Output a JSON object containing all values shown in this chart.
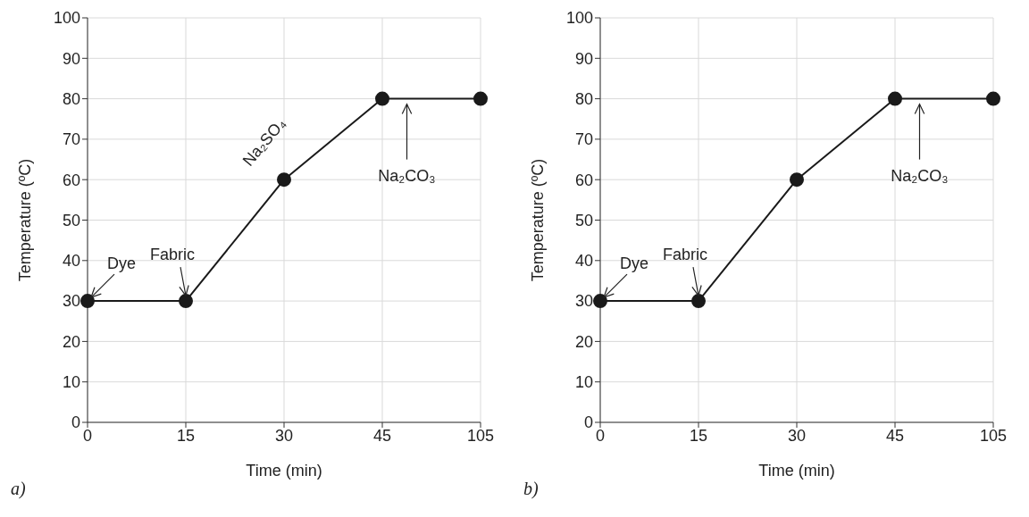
{
  "chart_data": [
    {
      "type": "line",
      "xlabel": "Time (min)",
      "ylabel": "Temperature (ºC)",
      "categories": [
        "0",
        "15",
        "30",
        "45",
        "105"
      ],
      "series": [
        {
          "color": "#1a1a1a",
          "values": [
            30,
            30,
            60,
            80,
            80
          ]
        }
      ],
      "ylim": [
        0,
        100
      ],
      "yticks": [
        0,
        10,
        20,
        30,
        40,
        50,
        60,
        70,
        80,
        90,
        100
      ],
      "grid": true,
      "marker": "circle",
      "line_style": "solid",
      "annotations": [
        {
          "text": "Dye",
          "x": "0",
          "y": 30
        },
        {
          "text": "Fabric",
          "x": "15",
          "y": 30
        },
        {
          "text": "Na₂SO₄",
          "x": "30",
          "y": 60
        },
        "Na₂CO₃",
        "a)"
      ]
    },
    {
      "type": "line",
      "xlabel": "Time (min)",
      "ylabel": "Temperature (ºC)",
      "categories": [
        "0",
        "15",
        "30",
        "45",
        "105"
      ],
      "series": [
        {
          "color": "#1a1a1a",
          "values": [
            30,
            30,
            60,
            80,
            80
          ]
        }
      ],
      "ylim": [
        0,
        100
      ],
      "yticks": [
        0,
        10,
        20,
        30,
        40,
        50,
        60,
        70,
        80,
        90,
        100
      ],
      "grid": true,
      "marker": "circle",
      "line_style": "solid",
      "annotations": [
        {
          "text": "Dye",
          "x": "0",
          "y": 30
        },
        {
          "text": "Fabric",
          "x": "15",
          "y": 30
        },
        "Na₂CO₃",
        "b)"
      ]
    }
  ]
}
